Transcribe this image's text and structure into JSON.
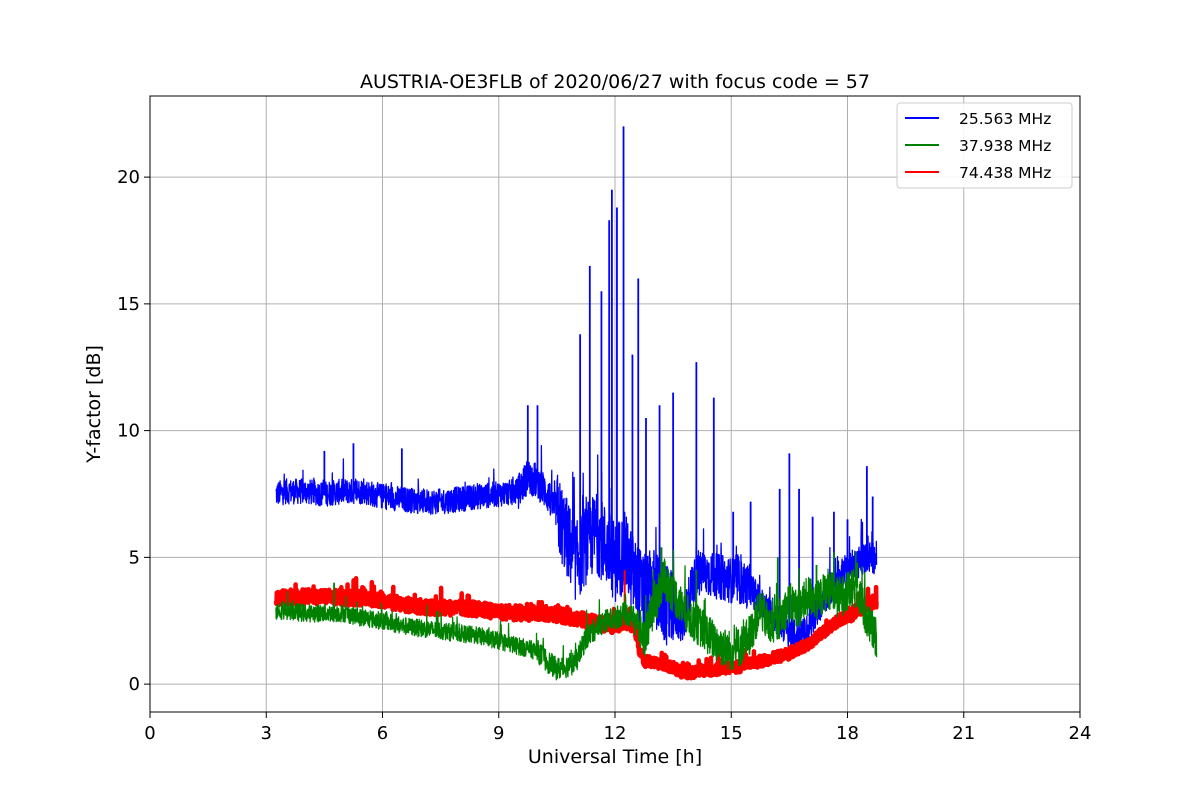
{
  "chart_data": {
    "type": "line",
    "title": "AUSTRIA-OE3FLB of 2020/06/27 with focus code = 57",
    "xlabel": "Universal Time [h]",
    "ylabel": "Y-factor [dB]",
    "xlim": [
      0,
      24
    ],
    "ylim": [
      -1.1,
      23.2
    ],
    "xticks": [
      0,
      3,
      6,
      9,
      12,
      15,
      18,
      21,
      24
    ],
    "yticks": [
      0,
      5,
      10,
      15,
      20
    ],
    "grid": true,
    "legend_position": "top-right",
    "series": [
      {
        "name": "25.563 MHz",
        "color": "#0000ff",
        "x": [
          3.25,
          3.5,
          4.0,
          4.5,
          5.0,
          5.5,
          6.0,
          6.5,
          7.0,
          7.5,
          8.0,
          8.5,
          9.0,
          9.5,
          9.75,
          10.0,
          10.25,
          10.5,
          10.75,
          11.0,
          11.25,
          11.5,
          11.75,
          12.0,
          12.25,
          12.5,
          12.75,
          13.0,
          13.25,
          13.5,
          13.75,
          14.0,
          14.25,
          14.5,
          14.75,
          15.0,
          15.25,
          15.5,
          15.75,
          16.0,
          16.25,
          16.5,
          16.75,
          17.0,
          17.25,
          17.5,
          17.75,
          18.0,
          18.25,
          18.5,
          18.75
        ],
        "y": [
          7.5,
          7.6,
          7.6,
          7.5,
          7.6,
          7.6,
          7.4,
          7.3,
          7.2,
          7.2,
          7.3,
          7.4,
          7.5,
          7.6,
          8.2,
          8.0,
          7.5,
          6.8,
          5.8,
          4.8,
          5.5,
          6.0,
          5.5,
          4.8,
          5.2,
          4.2,
          3.5,
          3.8,
          3.2,
          2.8,
          2.5,
          4.0,
          4.4,
          4.3,
          4.2,
          4.1,
          4.0,
          3.8,
          3.2,
          2.8,
          2.5,
          2.0,
          1.8,
          2.2,
          3.0,
          3.6,
          4.2,
          4.5,
          4.8,
          5.0,
          5.0
        ],
        "spikes": [
          [
            4.5,
            9.2
          ],
          [
            5.25,
            9.5
          ],
          [
            6.5,
            9.3
          ],
          [
            9.75,
            11.0
          ],
          [
            10.0,
            11.0
          ],
          [
            11.1,
            13.8
          ],
          [
            11.35,
            16.5
          ],
          [
            11.65,
            15.5
          ],
          [
            11.85,
            18.3
          ],
          [
            11.92,
            19.5
          ],
          [
            12.05,
            18.8
          ],
          [
            12.22,
            22.0
          ],
          [
            12.45,
            13.0
          ],
          [
            12.6,
            16.0
          ],
          [
            12.8,
            10.5
          ],
          [
            13.15,
            11.0
          ],
          [
            13.5,
            11.5
          ],
          [
            14.1,
            12.7
          ],
          [
            14.55,
            11.3
          ],
          [
            15.05,
            6.8
          ],
          [
            15.5,
            7.2
          ],
          [
            16.25,
            7.7
          ],
          [
            16.5,
            9.1
          ],
          [
            16.75,
            7.7
          ],
          [
            17.1,
            6.6
          ],
          [
            17.65,
            6.8
          ],
          [
            18.0,
            6.5
          ],
          [
            18.5,
            8.6
          ],
          [
            18.65,
            7.4
          ]
        ]
      },
      {
        "name": "37.938 MHz",
        "color": "#008000",
        "x": [
          3.25,
          3.5,
          4.0,
          4.5,
          5.0,
          5.5,
          6.0,
          6.5,
          7.0,
          7.5,
          8.0,
          8.5,
          9.0,
          9.5,
          10.0,
          10.25,
          10.5,
          10.75,
          11.0,
          11.25,
          11.5,
          11.75,
          12.0,
          12.25,
          12.5,
          12.75,
          13.0,
          13.25,
          13.5,
          13.75,
          14.0,
          14.25,
          14.5,
          14.75,
          15.0,
          15.25,
          15.5,
          15.75,
          16.0,
          16.25,
          16.5,
          16.75,
          17.0,
          17.25,
          17.5,
          17.75,
          18.0,
          18.25,
          18.5,
          18.75
        ],
        "y": [
          2.9,
          2.9,
          2.8,
          2.8,
          2.8,
          2.6,
          2.5,
          2.3,
          2.2,
          2.1,
          2.0,
          1.9,
          1.7,
          1.5,
          1.3,
          0.9,
          0.6,
          0.7,
          0.9,
          1.8,
          2.2,
          2.5,
          2.6,
          2.8,
          2.6,
          1.8,
          3.0,
          4.2,
          3.6,
          3.0,
          2.5,
          2.2,
          1.8,
          1.5,
          1.3,
          1.5,
          2.0,
          3.0,
          2.2,
          2.6,
          3.2,
          3.0,
          3.5,
          3.3,
          3.8,
          3.4,
          3.6,
          3.8,
          2.5,
          1.8
        ],
        "spikes": [
          [
            4.75,
            4.0
          ],
          [
            13.2,
            5.4
          ],
          [
            14.1,
            4.5
          ],
          [
            16.2,
            5.0
          ],
          [
            17.2,
            4.7
          ],
          [
            17.65,
            5.2
          ],
          [
            18.25,
            4.8
          ]
        ]
      },
      {
        "name": "74.438 MHz",
        "color": "#ff0000",
        "x": [
          3.25,
          3.5,
          4.0,
          4.5,
          5.0,
          5.5,
          6.0,
          6.5,
          7.0,
          7.5,
          8.0,
          8.5,
          9.0,
          9.5,
          10.0,
          10.5,
          11.0,
          11.5,
          12.0,
          12.25,
          12.5,
          12.6,
          12.75,
          13.0,
          13.25,
          13.5,
          13.75,
          14.0,
          14.25,
          14.5,
          14.75,
          15.0,
          15.25,
          15.5,
          15.75,
          16.0,
          16.25,
          16.5,
          16.75,
          17.0,
          17.25,
          17.5,
          17.75,
          18.0,
          18.25,
          18.5,
          18.75
        ],
        "y": [
          3.4,
          3.4,
          3.45,
          3.45,
          3.4,
          3.4,
          3.3,
          3.15,
          3.05,
          3.0,
          3.0,
          2.95,
          2.85,
          2.8,
          2.8,
          2.75,
          2.6,
          2.4,
          2.3,
          2.5,
          2.3,
          1.5,
          0.9,
          0.85,
          0.8,
          0.65,
          0.45,
          0.45,
          0.55,
          0.55,
          0.6,
          0.65,
          0.7,
          0.8,
          0.9,
          1.0,
          1.1,
          1.2,
          1.4,
          1.6,
          1.9,
          2.2,
          2.5,
          2.7,
          2.9,
          3.1,
          3.3
        ],
        "spikes": [
          [
            12.25,
            4.5
          ]
        ]
      }
    ]
  }
}
